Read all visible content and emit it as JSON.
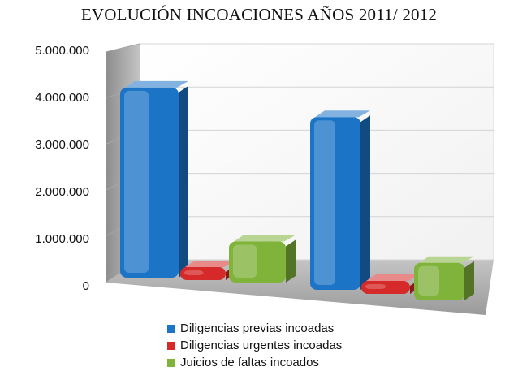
{
  "chart_data": {
    "type": "bar",
    "title": "EVOLUCIÓN INCOACIONES AÑOS 2011/ 2012",
    "categories": [
      "",
      ""
    ],
    "series": [
      {
        "name": "Diligencias previas incoadas",
        "color": "#1c74c6",
        "values": [
          4400000,
          4000000
        ]
      },
      {
        "name": "Diligencias urgentes incoadas",
        "color": "#d62a2a",
        "values": [
          280000,
          250000
        ]
      },
      {
        "name": "Juicios de faltas incoados",
        "color": "#7fb33a",
        "values": [
          950000,
          870000
        ]
      }
    ],
    "yticks": [
      "0",
      "1.000.000",
      "2.000.000",
      "3.000.000",
      "4.000.000",
      "5.000.000"
    ],
    "ylim": [
      0,
      5000000
    ],
    "grid": true,
    "legend_position": "bottom"
  }
}
